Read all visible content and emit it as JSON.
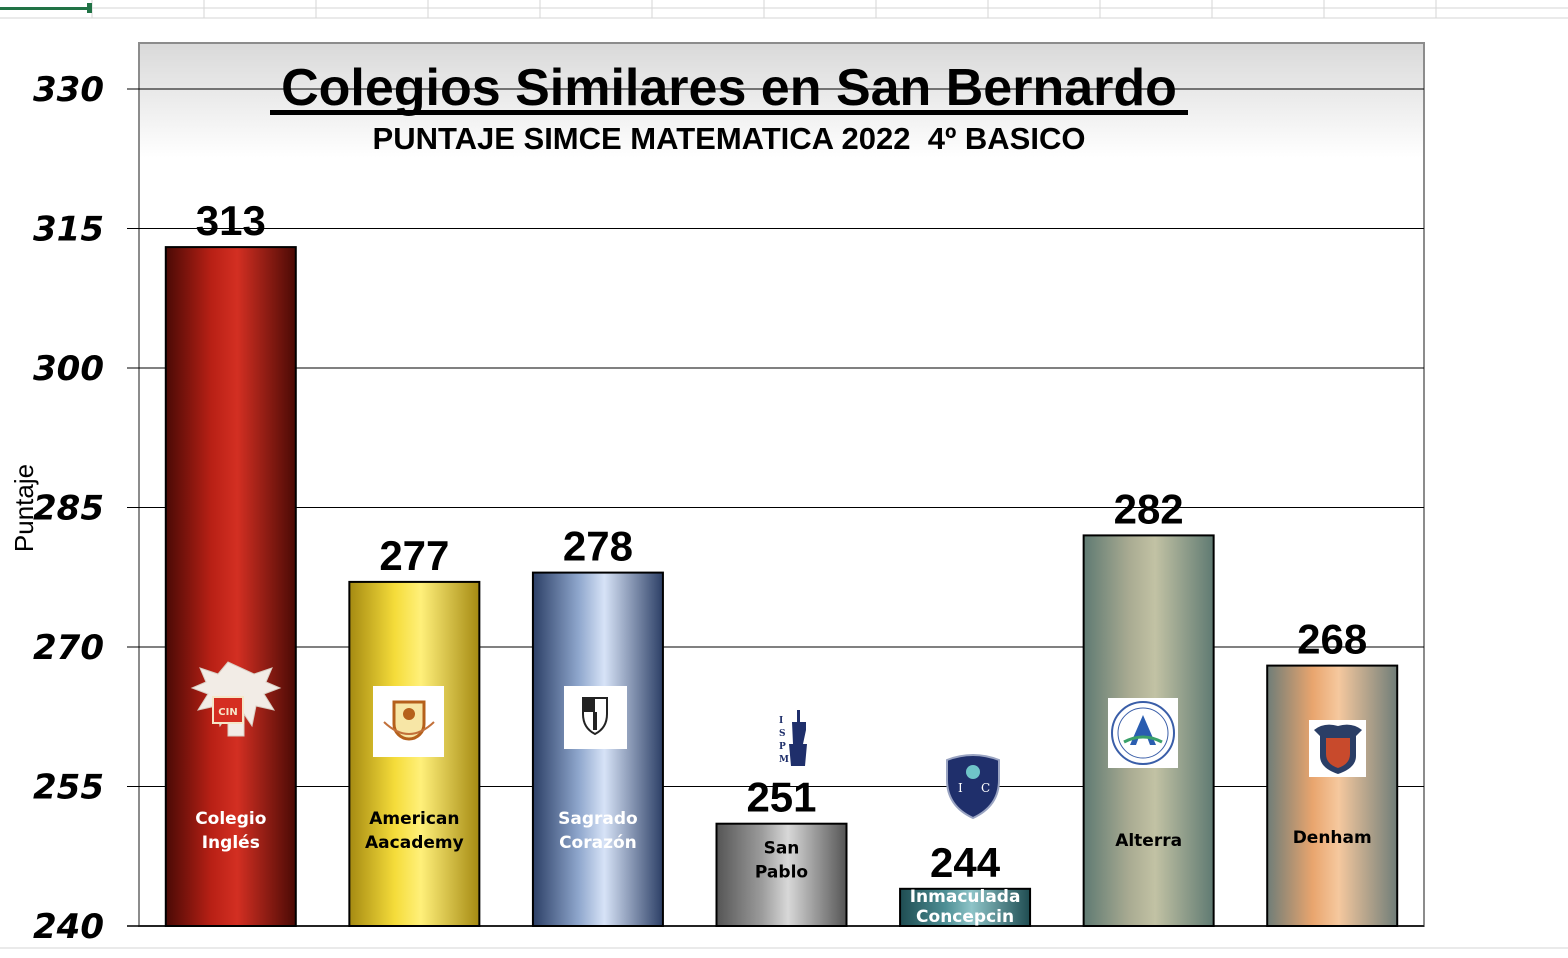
{
  "chart_data": {
    "type": "bar",
    "title": "Colegios Similares en San Bernardo",
    "subtitle": "PUNTAJE SIMCE MATEMATICA 2022  4º BASICO",
    "ylabel": "Puntaje",
    "xlabel": "",
    "ylim": [
      240,
      330
    ],
    "yticks": [
      "240",
      "255",
      "270",
      "285",
      "300",
      "315",
      "330"
    ],
    "grid": true,
    "categories": [
      [
        "Colegio",
        "Inglés"
      ],
      [
        "American",
        "Aacademy"
      ],
      [
        "Sagrado",
        "Corazón"
      ],
      [
        "San",
        "Pablo"
      ],
      [
        "Inmaculada",
        "Concepcin"
      ],
      [
        "Alterra"
      ],
      [
        "Denham"
      ]
    ],
    "values": [
      313,
      277,
      278,
      251,
      244,
      282,
      268
    ],
    "value_labels": [
      "313",
      "277",
      "278",
      "251",
      "244",
      "282",
      "268"
    ],
    "colors": [
      "#b82015",
      "#f5dc3a",
      "#8ea6cc",
      "#9c9c9c",
      "#4e8f95",
      "#a9ab92",
      "#e9a56e"
    ],
    "label_colors": [
      "#ffffff",
      "#000000",
      "#ffffff",
      "#000000",
      "#ffffff",
      "#000000",
      "#000000"
    ],
    "logo_labels": [
      "ISPM",
      "IC"
    ]
  }
}
